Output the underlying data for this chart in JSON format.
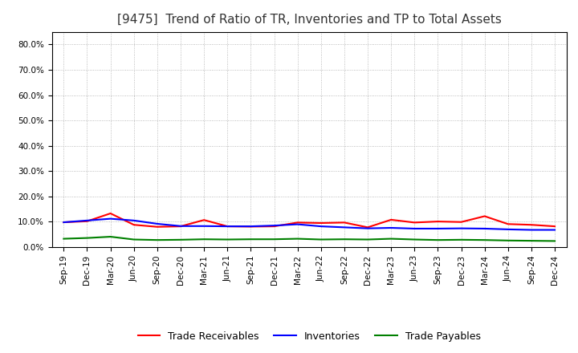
{
  "title": "[9475]  Trend of Ratio of TR, Inventories and TP to Total Assets",
  "x_labels": [
    "Sep-19",
    "Dec-19",
    "Mar-20",
    "Jun-20",
    "Sep-20",
    "Dec-20",
    "Mar-21",
    "Jun-21",
    "Sep-21",
    "Dec-21",
    "Mar-22",
    "Jun-22",
    "Sep-22",
    "Dec-22",
    "Mar-23",
    "Jun-23",
    "Sep-23",
    "Dec-23",
    "Mar-24",
    "Jun-24",
    "Sep-24",
    "Dec-24"
  ],
  "trade_receivables": [
    0.098,
    0.102,
    0.133,
    0.088,
    0.08,
    0.082,
    0.107,
    0.082,
    0.081,
    0.082,
    0.097,
    0.095,
    0.097,
    0.078,
    0.108,
    0.097,
    0.101,
    0.099,
    0.122,
    0.091,
    0.088,
    0.082
  ],
  "inventories": [
    0.098,
    0.105,
    0.112,
    0.105,
    0.092,
    0.083,
    0.083,
    0.082,
    0.082,
    0.085,
    0.09,
    0.082,
    0.078,
    0.074,
    0.076,
    0.073,
    0.073,
    0.074,
    0.073,
    0.07,
    0.068,
    0.068
  ],
  "trade_payables": [
    0.033,
    0.036,
    0.041,
    0.03,
    0.028,
    0.029,
    0.031,
    0.03,
    0.031,
    0.031,
    0.033,
    0.03,
    0.031,
    0.03,
    0.033,
    0.03,
    0.028,
    0.029,
    0.028,
    0.026,
    0.025,
    0.024
  ],
  "tr_color": "#FF0000",
  "inv_color": "#0000FF",
  "tp_color": "#008000",
  "ylim": [
    0.0,
    0.85
  ],
  "yticks": [
    0.0,
    0.1,
    0.2,
    0.3,
    0.4,
    0.5,
    0.6,
    0.7,
    0.8
  ],
  "ytick_labels": [
    "0.0%",
    "10.0%",
    "20.0%",
    "30.0%",
    "40.0%",
    "50.0%",
    "60.0%",
    "70.0%",
    "80.0%"
  ],
  "legend_labels": [
    "Trade Receivables",
    "Inventories",
    "Trade Payables"
  ],
  "bg_color": "#FFFFFF",
  "grid_color": "#AAAAAA",
  "title_fontsize": 11,
  "legend_fontsize": 9,
  "tick_fontsize": 7.5,
  "line_width": 1.5
}
